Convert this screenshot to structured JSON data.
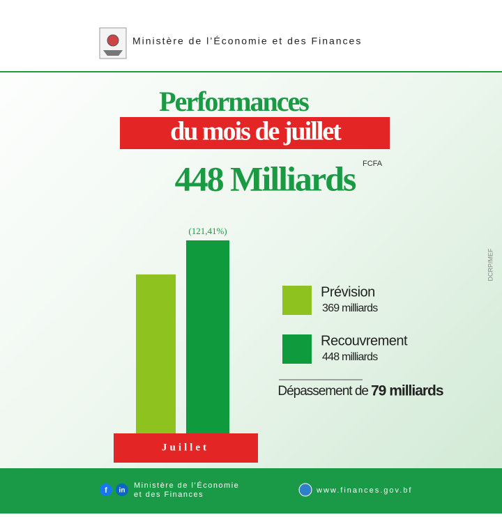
{
  "header": {
    "ministry": "Ministère de l’Économie et des Finances"
  },
  "chart_data": {
    "type": "bar",
    "title": "Performances",
    "subtitle": "du mois de juillet",
    "total": "448 Milliards",
    "unit": "FCFA",
    "categories": [
      "Juillet"
    ],
    "series": [
      {
        "name": "Prévision",
        "color": "#8dc21f",
        "values": [
          369
        ],
        "value_labels": [
          "369 milliards"
        ]
      },
      {
        "name": "Recouvrement",
        "color": "#0f9a3e",
        "values": [
          448
        ],
        "value_labels": [
          "448 milliards"
        ],
        "annotation": "(121,41%)"
      }
    ],
    "note_prefix": "Dépassement de",
    "note_value": "79 milliards"
  },
  "side_label": "DCRP/MEF",
  "footer": {
    "ministry_line1": "Ministère de l’Économie",
    "ministry_line2": "et des Finances",
    "website": "www.finances.gov.bf"
  }
}
